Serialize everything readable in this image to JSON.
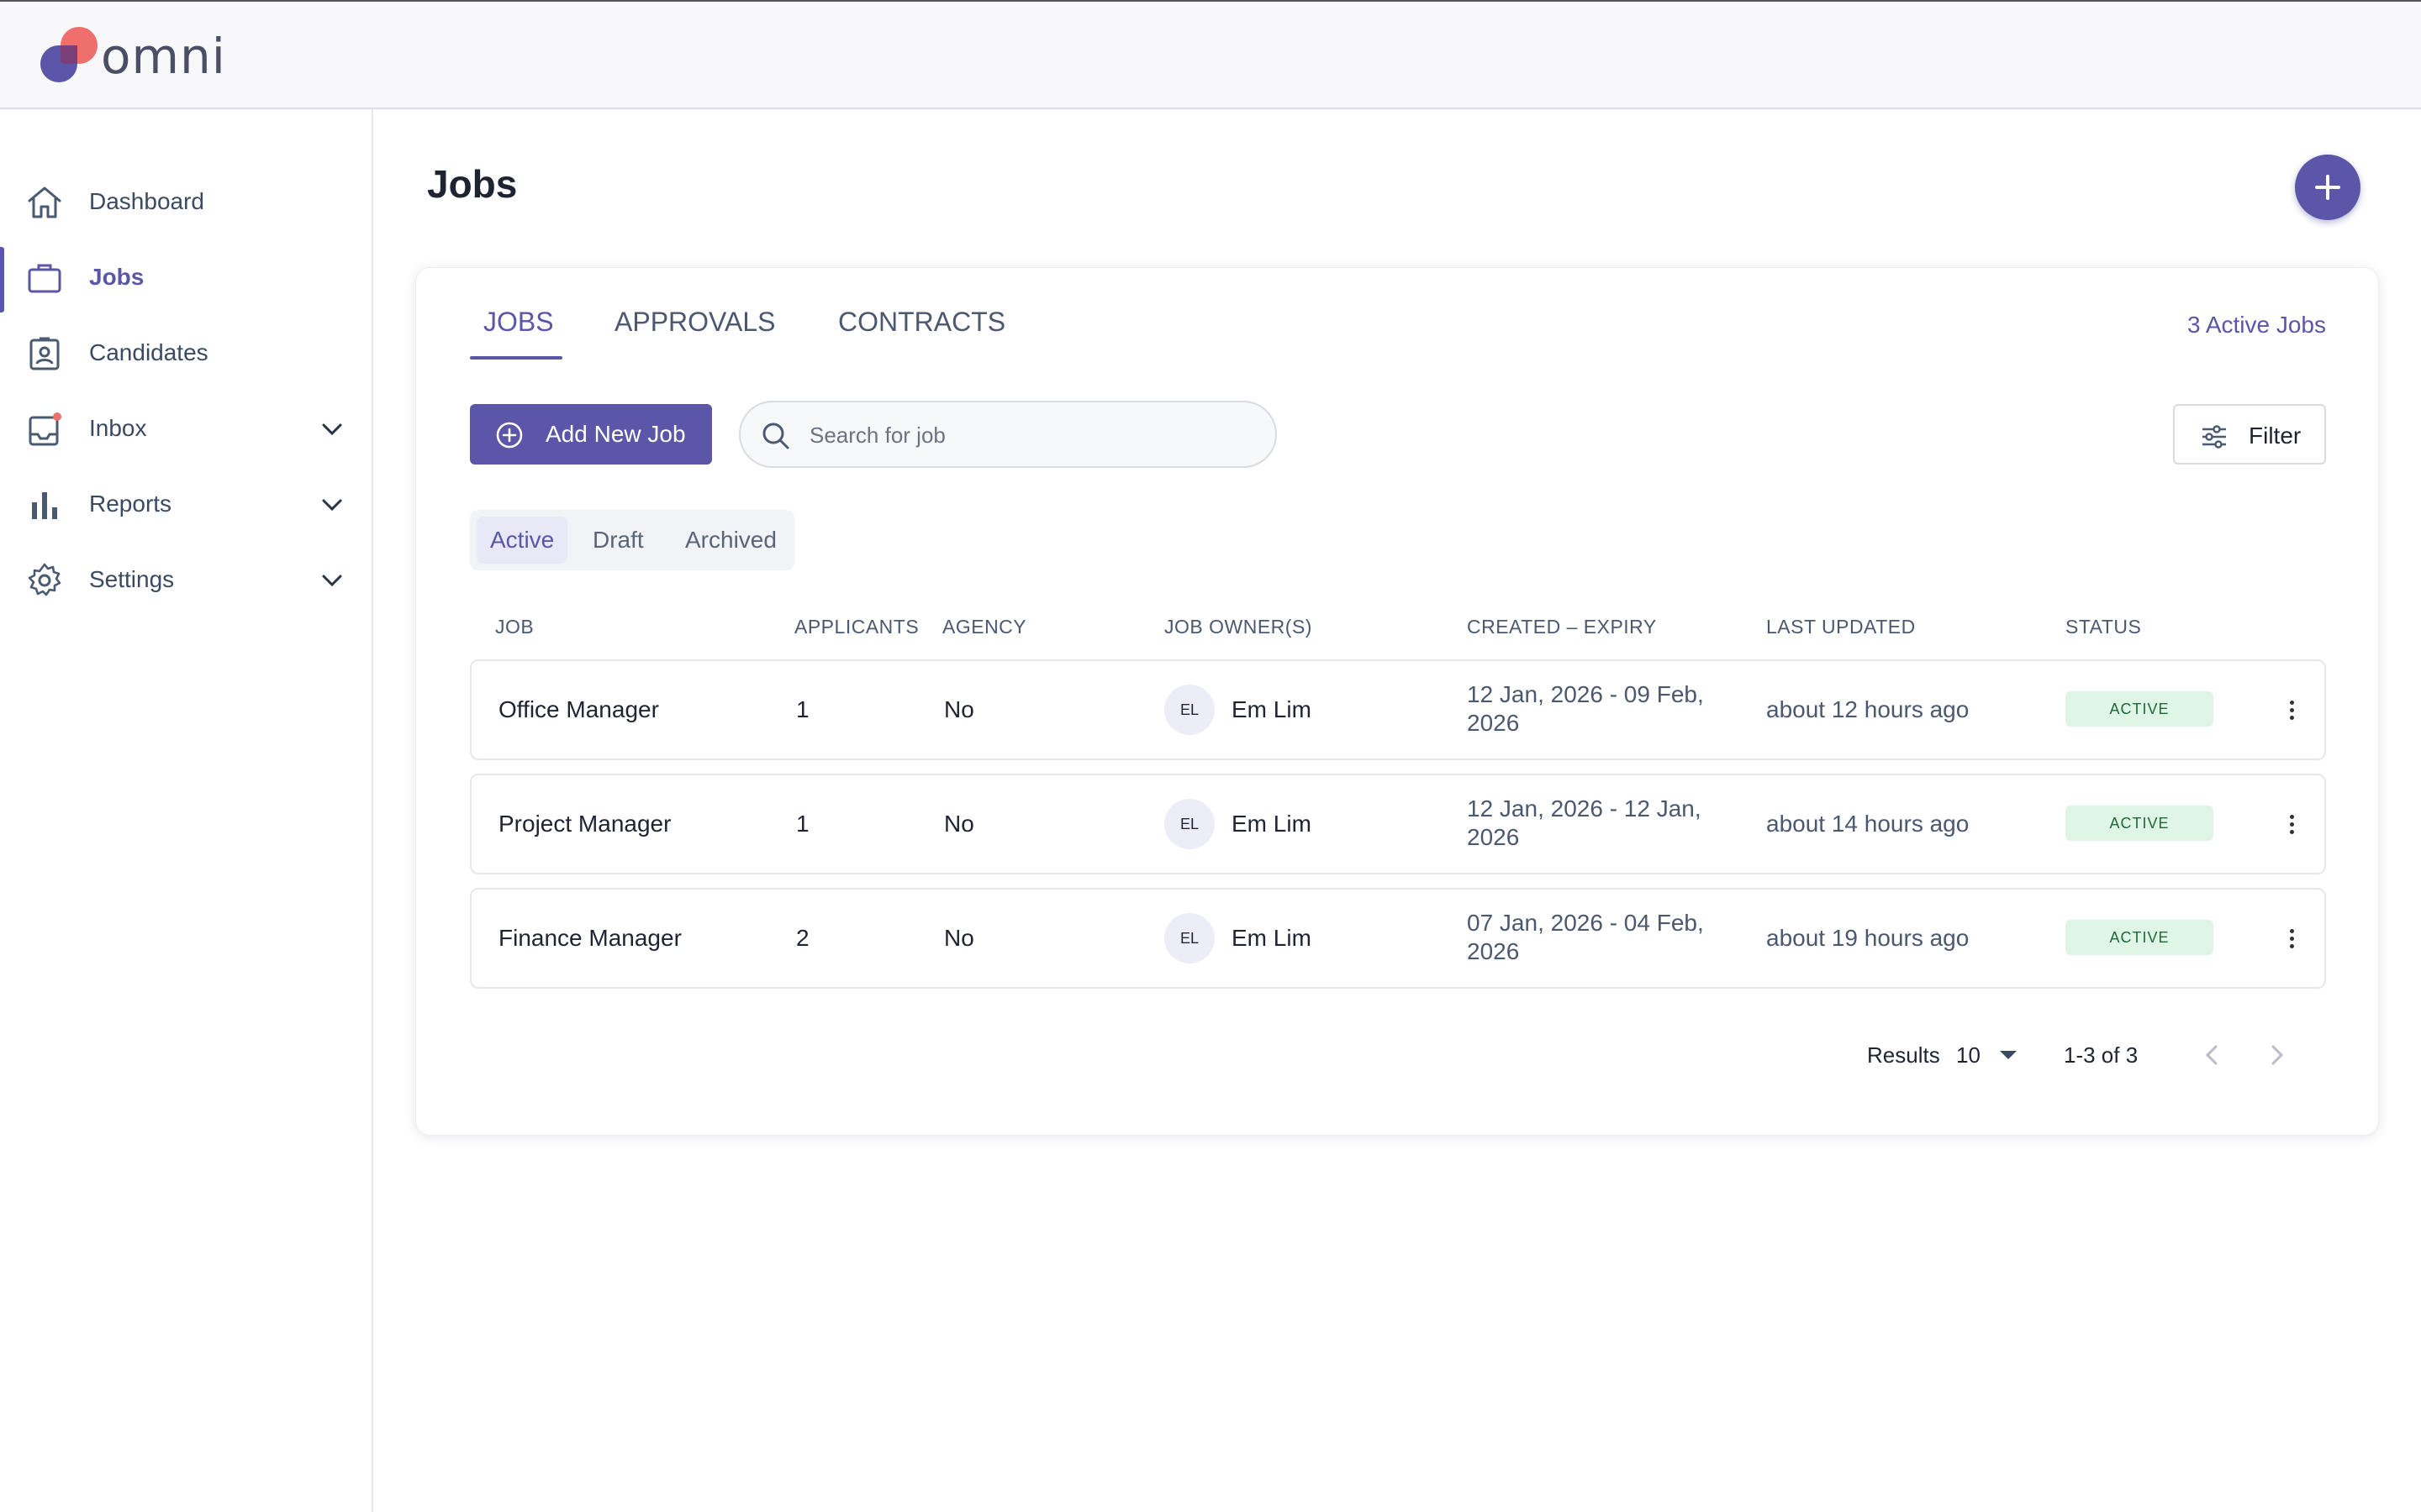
{
  "app": {
    "name": "omni"
  },
  "sidebar": {
    "items": [
      {
        "label": "Dashboard",
        "icon": "home-icon"
      },
      {
        "label": "Jobs",
        "icon": "briefcase-icon",
        "active": true
      },
      {
        "label": "Candidates",
        "icon": "id-badge-icon"
      },
      {
        "label": "Inbox",
        "icon": "inbox-icon",
        "has_notification": true,
        "expandable": true
      },
      {
        "label": "Reports",
        "icon": "bar-chart-icon",
        "expandable": true
      },
      {
        "label": "Settings",
        "icon": "gear-icon",
        "expandable": true
      }
    ]
  },
  "page": {
    "title": "Jobs"
  },
  "tabs": [
    {
      "label": "JOBS",
      "active": true
    },
    {
      "label": "APPROVALS"
    },
    {
      "label": "CONTRACTS"
    }
  ],
  "active_count": "3 Active Jobs",
  "toolbar": {
    "add_label": "Add New Job",
    "search_placeholder": "Search for job",
    "filter_label": "Filter"
  },
  "status_filter": {
    "options": [
      "Active",
      "Draft",
      "Archived"
    ],
    "selected": "Active"
  },
  "table": {
    "columns": [
      "JOB",
      "APPLICANTS",
      "AGENCY",
      "JOB OWNER(S)",
      "CREATED – EXPIRY",
      "LAST UPDATED",
      "STATUS"
    ],
    "rows": [
      {
        "job": "Office Manager",
        "applicants": "1",
        "agency": "No",
        "owner_initials": "EL",
        "owner": "Em Lim",
        "dates_line1": "12 Jan, 2026 - 09 Feb,",
        "dates_line2": "2026",
        "updated": "about 12 hours ago",
        "status": "ACTIVE"
      },
      {
        "job": "Project Manager",
        "applicants": "1",
        "agency": "No",
        "owner_initials": "EL",
        "owner": "Em Lim",
        "dates_line1": "12 Jan, 2026 - 12 Jan,",
        "dates_line2": "2026",
        "updated": "about 14 hours ago",
        "status": "ACTIVE"
      },
      {
        "job": "Finance Manager",
        "applicants": "2",
        "agency": "No",
        "owner_initials": "EL",
        "owner": "Em Lim",
        "dates_line1": "07 Jan, 2026 - 04 Feb,",
        "dates_line2": "2026",
        "updated": "about 19 hours ago",
        "status": "ACTIVE"
      }
    ]
  },
  "pagination": {
    "results_label": "Results",
    "per_page": "10",
    "range": "1-3 of 3"
  },
  "colors": {
    "accent": "#5b56a8",
    "status_active_bg": "#dff5e6",
    "status_active_text": "#1f6a3a",
    "notification_dot": "#ef6f6c"
  }
}
